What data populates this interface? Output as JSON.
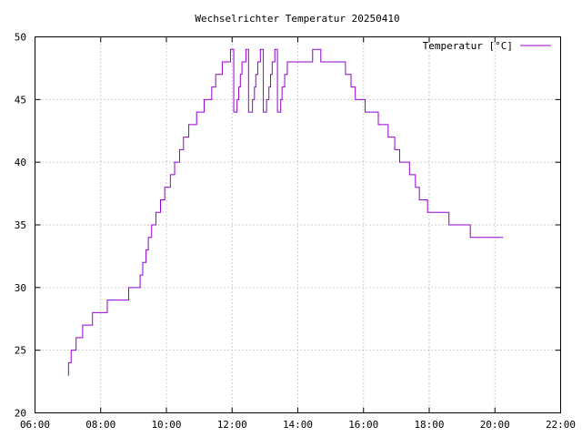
{
  "chart_data": {
    "type": "line",
    "title": "Wechselrichter Temperatur 20250410",
    "xlabel": "",
    "ylabel": "",
    "x_unit": "time of day (hours)",
    "xlim": [
      6,
      22
    ],
    "ylim": [
      20,
      50
    ],
    "xticks": [
      {
        "value": 6,
        "label": "06:00"
      },
      {
        "value": 8,
        "label": "08:00"
      },
      {
        "value": 10,
        "label": "10:00"
      },
      {
        "value": 12,
        "label": "12:00"
      },
      {
        "value": 14,
        "label": "14:00"
      },
      {
        "value": 16,
        "label": "16:00"
      },
      {
        "value": 18,
        "label": "18:00"
      },
      {
        "value": 20,
        "label": "20:00"
      },
      {
        "value": 22,
        "label": "22:00"
      }
    ],
    "yticks": [
      {
        "value": 20,
        "label": "20"
      },
      {
        "value": 25,
        "label": "25"
      },
      {
        "value": 30,
        "label": "30"
      },
      {
        "value": 35,
        "label": "35"
      },
      {
        "value": 40,
        "label": "40"
      },
      {
        "value": 45,
        "label": "45"
      },
      {
        "value": 50,
        "label": "50"
      }
    ],
    "grid": true,
    "legend_position": "top-right",
    "series": [
      {
        "name": "Temperatur [°C]",
        "color": "#9400d3",
        "step": true,
        "points": [
          [
            7.0,
            23
          ],
          [
            7.02,
            24
          ],
          [
            7.1,
            25
          ],
          [
            7.25,
            26
          ],
          [
            7.45,
            27
          ],
          [
            7.75,
            28
          ],
          [
            8.2,
            29
          ],
          [
            8.85,
            30
          ],
          [
            9.2,
            31
          ],
          [
            9.28,
            32
          ],
          [
            9.38,
            33
          ],
          [
            9.45,
            34
          ],
          [
            9.55,
            35
          ],
          [
            9.68,
            36
          ],
          [
            9.82,
            37
          ],
          [
            9.95,
            38
          ],
          [
            10.12,
            39
          ],
          [
            10.25,
            40
          ],
          [
            10.4,
            41
          ],
          [
            10.52,
            42
          ],
          [
            10.68,
            43
          ],
          [
            10.92,
            44
          ],
          [
            11.15,
            45
          ],
          [
            11.38,
            46
          ],
          [
            11.5,
            47
          ],
          [
            11.7,
            48
          ],
          [
            11.95,
            49
          ],
          [
            12.05,
            44
          ],
          [
            12.08,
            44
          ],
          [
            12.15,
            45
          ],
          [
            12.2,
            46
          ],
          [
            12.25,
            47
          ],
          [
            12.3,
            48
          ],
          [
            12.35,
            48
          ],
          [
            12.42,
            49
          ],
          [
            12.5,
            44
          ],
          [
            12.55,
            44
          ],
          [
            12.62,
            45
          ],
          [
            12.68,
            46
          ],
          [
            12.72,
            47
          ],
          [
            12.78,
            48
          ],
          [
            12.86,
            49
          ],
          [
            12.95,
            44
          ],
          [
            13.0,
            44
          ],
          [
            13.05,
            45
          ],
          [
            13.12,
            46
          ],
          [
            13.17,
            47
          ],
          [
            13.22,
            48
          ],
          [
            13.3,
            49
          ],
          [
            13.38,
            44
          ],
          [
            13.42,
            44
          ],
          [
            13.48,
            45
          ],
          [
            13.52,
            46
          ],
          [
            13.6,
            47
          ],
          [
            13.68,
            48
          ],
          [
            14.25,
            48
          ],
          [
            14.45,
            49
          ],
          [
            14.7,
            48
          ],
          [
            15.45,
            47
          ],
          [
            15.62,
            46
          ],
          [
            15.75,
            45
          ],
          [
            16.05,
            44
          ],
          [
            16.45,
            43
          ],
          [
            16.75,
            42
          ],
          [
            16.95,
            41
          ],
          [
            17.1,
            40
          ],
          [
            17.4,
            39
          ],
          [
            17.58,
            38
          ],
          [
            17.7,
            37
          ],
          [
            17.95,
            36
          ],
          [
            18.6,
            35
          ],
          [
            19.25,
            34
          ],
          [
            20.25,
            34
          ]
        ]
      }
    ]
  }
}
